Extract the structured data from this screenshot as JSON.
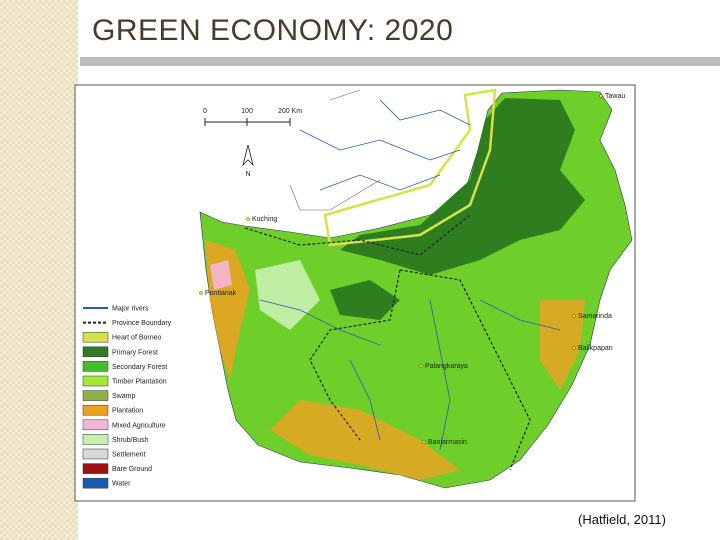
{
  "header": {
    "title": "GREEN ECONOMY: 2020"
  },
  "map": {
    "scale": [
      "0",
      "100",
      "200 Km"
    ],
    "north": "N",
    "places": [
      "Tawau",
      "Kuching",
      "Pontianak",
      "Samarinda",
      "Balikpapan",
      "Palangkaraya",
      "Banjarmasin"
    ],
    "legend": [
      {
        "label": "Major rivers",
        "color": "#2a5db0"
      },
      {
        "label": "Province Boundary",
        "color": "#222222"
      },
      {
        "label": "Heart of Borneo",
        "color": "#d8e04a"
      },
      {
        "label": "Primary Forest",
        "color": "#2e7d1e"
      },
      {
        "label": "Secondary Forest",
        "color": "#3fc02a"
      },
      {
        "label": "Timber Plantation",
        "color": "#a6e83a"
      },
      {
        "label": "Swamp",
        "color": "#8fb046"
      },
      {
        "label": "Plantation",
        "color": "#f0a020"
      },
      {
        "label": "Mixed Agriculture",
        "color": "#f4b6d8"
      },
      {
        "label": "Shrub/Bush",
        "color": "#c8f0b0"
      },
      {
        "label": "Settlement",
        "color": "#d8d8d8"
      },
      {
        "label": "Bare Ground",
        "color": "#a01010"
      },
      {
        "label": "Water",
        "color": "#1a5ab0"
      }
    ]
  },
  "caption": "(Hatfield, 2011)"
}
